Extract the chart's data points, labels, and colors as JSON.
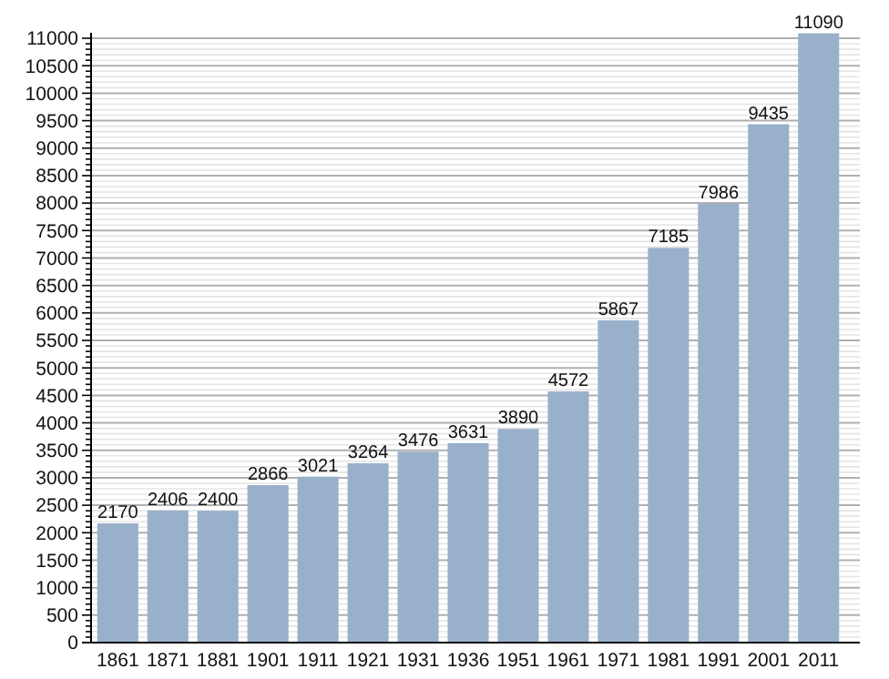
{
  "chart_data": {
    "type": "bar",
    "categories": [
      "1861",
      "1871",
      "1881",
      "1901",
      "1911",
      "1921",
      "1931",
      "1936",
      "1951",
      "1961",
      "1971",
      "1981",
      "1991",
      "2001",
      "2011"
    ],
    "values": [
      2170,
      2406,
      2400,
      2866,
      3021,
      3264,
      3476,
      3631,
      3890,
      4572,
      5867,
      7185,
      7986,
      9435,
      11090
    ],
    "color": "#99b0cb",
    "data_labels": true,
    "grid": "y",
    "ylim": [
      0,
      11100
    ],
    "yticks": [
      0,
      {
        "value": 100,
        "label": null
      },
      {
        "value": 200,
        "label": null
      },
      {
        "value": 300,
        "label": null
      },
      {
        "value": 400,
        "label": null
      },
      500,
      {
        "value": 600,
        "label": null
      },
      {
        "value": 700,
        "label": null
      },
      {
        "value": 800,
        "label": null
      },
      {
        "value": 900,
        "label": null
      },
      1000,
      {
        "value": 1100,
        "label": null
      },
      {
        "value": 1200,
        "label": null
      },
      {
        "value": 1300,
        "label": null
      },
      {
        "value": 1400,
        "label": null
      },
      1500,
      {
        "value": 1600,
        "label": null
      },
      {
        "value": 1700,
        "label": null
      },
      {
        "value": 1800,
        "label": null
      },
      {
        "value": 1900,
        "label": null
      },
      2000,
      {
        "value": 2100,
        "label": null
      },
      {
        "value": 2200,
        "label": null
      },
      {
        "value": 2300,
        "label": null
      },
      {
        "value": 2400,
        "label": null
      },
      2500,
      {
        "value": 2600,
        "label": null
      },
      {
        "value": 2700,
        "label": null
      },
      {
        "value": 2800,
        "label": null
      },
      {
        "value": 2900,
        "label": null
      },
      3000,
      {
        "value": 3100,
        "label": null
      },
      {
        "value": 3200,
        "label": null
      },
      {
        "value": 3300,
        "label": null
      },
      {
        "value": 3400,
        "label": null
      },
      3500,
      {
        "value": 3600,
        "label": null
      },
      {
        "value": 3700,
        "label": null
      },
      {
        "value": 3800,
        "label": null
      },
      {
        "value": 3900,
        "label": null
      },
      4000,
      {
        "value": 4100,
        "label": null
      },
      {
        "value": 4200,
        "label": null
      },
      {
        "value": 4300,
        "label": null
      },
      {
        "value": 4400,
        "label": null
      },
      4500,
      {
        "value": 4600,
        "label": null
      },
      {
        "value": 4700,
        "label": null
      },
      {
        "value": 4800,
        "label": null
      },
      {
        "value": 4900,
        "label": null
      },
      5000,
      {
        "value": 5100,
        "label": null
      },
      {
        "value": 5200,
        "label": null
      },
      {
        "value": 5300,
        "label": null
      },
      {
        "value": 5400,
        "label": null
      },
      5500,
      {
        "value": 5600,
        "label": null
      },
      {
        "value": 5700,
        "label": null
      },
      {
        "value": 5800,
        "label": null
      },
      {
        "value": 5900,
        "label": null
      },
      6000,
      {
        "value": 6100,
        "label": null
      },
      {
        "value": 6200,
        "label": null
      },
      {
        "value": 6300,
        "label": null
      },
      {
        "value": 6400,
        "label": null
      },
      6500,
      {
        "value": 6600,
        "label": null
      },
      {
        "value": 6700,
        "label": null
      },
      {
        "value": 6800,
        "label": null
      },
      {
        "value": 6900,
        "label": null
      },
      7000,
      {
        "value": 7100,
        "label": null
      },
      {
        "value": 7200,
        "label": null
      },
      {
        "value": 7300,
        "label": null
      },
      {
        "value": 7400,
        "label": null
      },
      7500,
      {
        "value": 7600,
        "label": null
      },
      {
        "value": 7700,
        "label": null
      },
      {
        "value": 7800,
        "label": null
      },
      {
        "value": 7900,
        "label": null
      },
      8000,
      {
        "value": 8100,
        "label": null
      },
      {
        "value": 8200,
        "label": null
      },
      {
        "value": 8300,
        "label": null
      },
      {
        "value": 8400,
        "label": null
      },
      8500,
      {
        "value": 8600,
        "label": null
      },
      {
        "value": 8700,
        "label": null
      },
      {
        "value": 8800,
        "label": null
      },
      {
        "value": 8900,
        "label": null
      },
      9000,
      {
        "value": 9100,
        "label": null
      },
      {
        "value": 9200,
        "label": null
      },
      {
        "value": 9300,
        "label": null
      },
      {
        "value": 9400,
        "label": null
      },
      9500,
      {
        "value": 9600,
        "label": null
      },
      {
        "value": 9700,
        "label": null
      },
      {
        "value": 9800,
        "label": null
      },
      {
        "value": 9900,
        "label": null
      },
      10000,
      {
        "value": 10100,
        "label": null
      },
      {
        "value": 10200,
        "label": null
      },
      {
        "value": 10300,
        "label": null
      },
      {
        "value": 10400,
        "label": null
      },
      10500,
      {
        "value": 10600,
        "label": null
      },
      {
        "value": 10700,
        "label": null
      },
      {
        "value": 10800,
        "label": null
      },
      {
        "value": 10900,
        "label": null
      },
      11000
    ]
  }
}
